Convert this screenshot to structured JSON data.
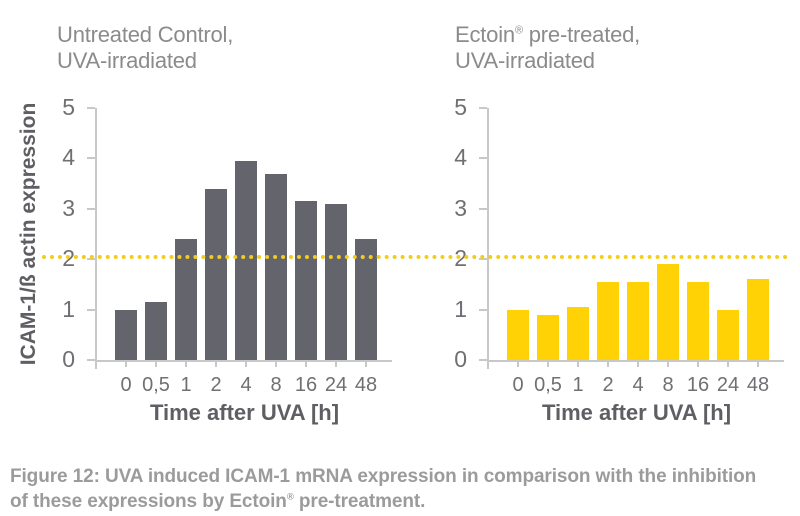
{
  "figure": {
    "caption": {
      "line1": "Figure 12: UVA induced ICAM-1 mRNA expression in comparison with the inhibition",
      "line2_pre": "of these expressions by Ectoin",
      "line2_reg": "®",
      "line2_post": " pre-treatment."
    }
  },
  "colors": {
    "gray_bar": "#64646C",
    "yellow_bar": "#FFD205",
    "ref_line": "#F3CD1E",
    "axis": "#C8C8C8",
    "tick_text": "#6F6F74",
    "title_text": "#8B8B8B",
    "bold_text": "#5E5E63",
    "caption_text": "#9B9B9B",
    "background": "#FFFFFF"
  },
  "chart_data": [
    {
      "type": "bar",
      "title": "Untreated Control, UVA-irradiated",
      "title_line1": "Untreated Control,",
      "title_line2": "UVA-irradiated",
      "categories": [
        "0",
        "0,5",
        "1",
        "2",
        "4",
        "8",
        "16",
        "24",
        "48"
      ],
      "values": [
        1.0,
        1.15,
        2.4,
        3.4,
        3.95,
        3.7,
        3.15,
        3.1,
        2.4
      ],
      "xlabel": "Time after UVA [h]",
      "ylabel": "ICAM-1/ß actin expression",
      "ylim": [
        0,
        5
      ],
      "yticks": [
        0,
        1,
        2,
        3,
        4,
        5
      ],
      "bar_color": "#64646C",
      "grid": false,
      "legend": "none",
      "annotations": [
        {
          "type": "hline",
          "y": 2.05,
          "color": "#F3CD1E",
          "style": "dotted"
        }
      ]
    },
    {
      "type": "bar",
      "title": "Ectoin® pre-treated, UVA-irradiated",
      "title_line1_brand": "Ectoin",
      "title_line1_reg": "®",
      "title_line1_rest": " pre-treated,",
      "title_line2": "UVA-irradiated",
      "categories": [
        "0",
        "0,5",
        "1",
        "2",
        "4",
        "8",
        "16",
        "24",
        "48"
      ],
      "values": [
        1.0,
        0.9,
        1.05,
        1.55,
        1.55,
        1.9,
        1.55,
        1.0,
        1.6
      ],
      "xlabel": "Time after UVA [h]",
      "ylabel": "",
      "ylim": [
        0,
        5
      ],
      "yticks": [
        0,
        1,
        2,
        3,
        4,
        5
      ],
      "bar_color": "#FFD205",
      "grid": false,
      "legend": "none",
      "annotations": [
        {
          "type": "hline",
          "y": 2.05,
          "color": "#F3CD1E",
          "style": "dotted"
        }
      ]
    }
  ]
}
